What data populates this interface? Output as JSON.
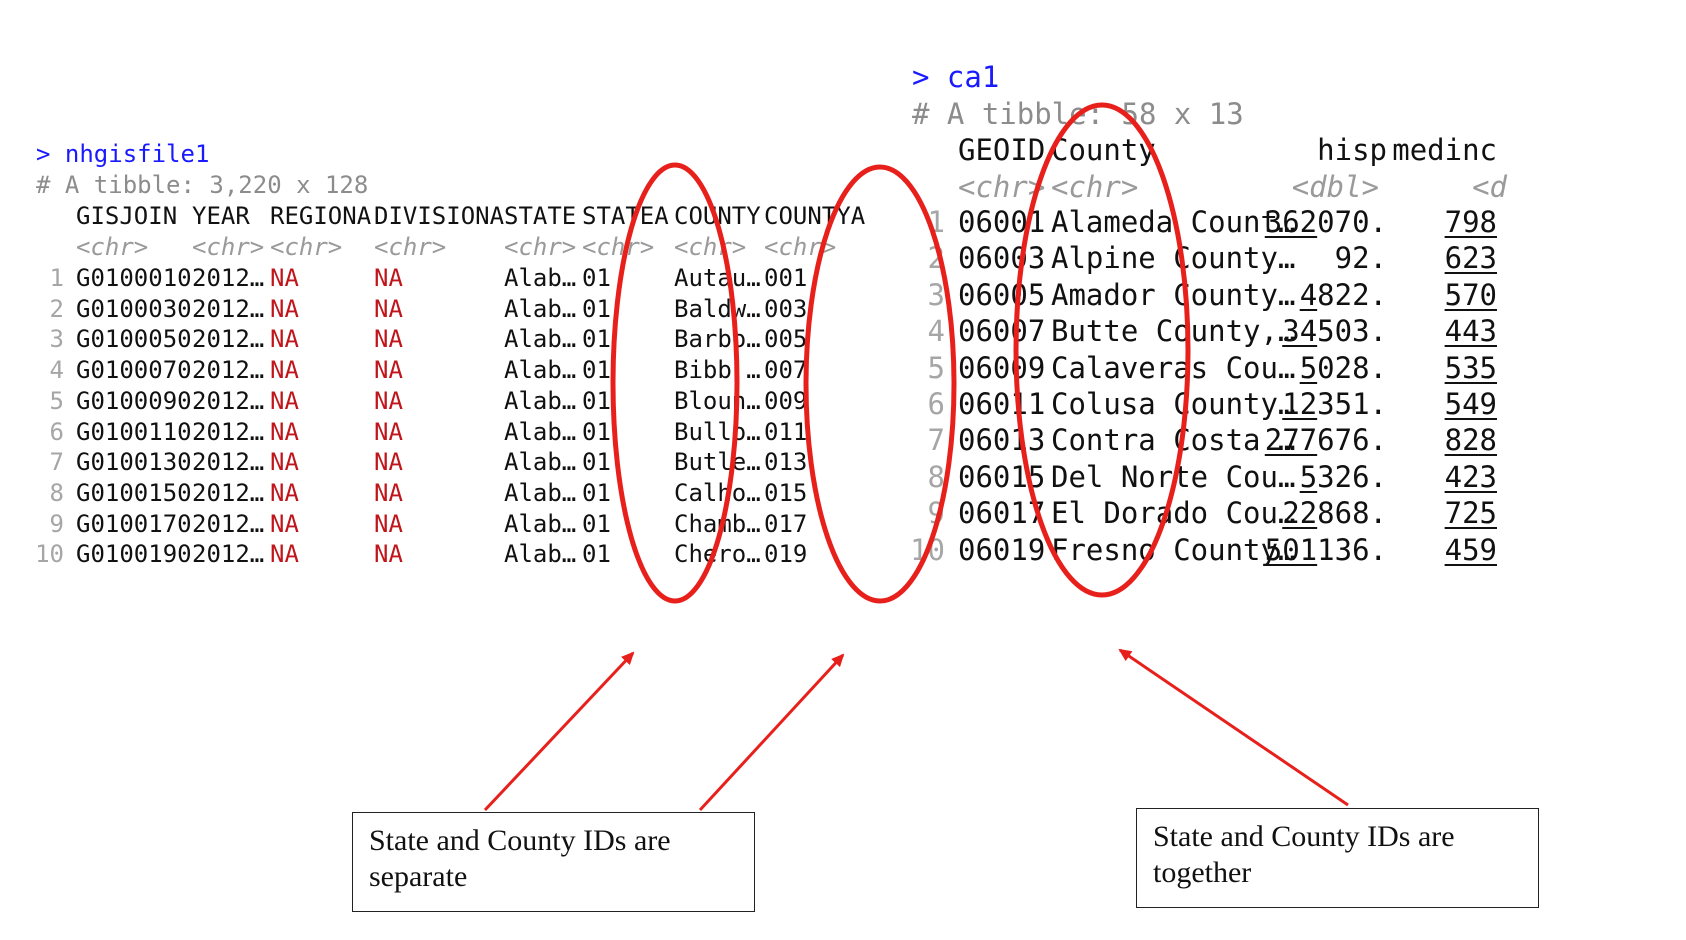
{
  "left_console": {
    "prompt": "> nhgisfile1",
    "tibble_info": "# A tibble: 3,220 x 128",
    "columns": [
      {
        "name": "GISJOIN",
        "type": "<chr>"
      },
      {
        "name": "YEAR",
        "type": "<chr>"
      },
      {
        "name": "REGIONA",
        "type": "<chr>"
      },
      {
        "name": "DIVISIONA",
        "type": "<chr>"
      },
      {
        "name": "STATE",
        "type": "<chr>"
      },
      {
        "name": "STATEA",
        "type": "<chr>"
      },
      {
        "name": "COUNTY",
        "type": "<chr>"
      },
      {
        "name": "COUNTYA",
        "type": "<chr>"
      }
    ],
    "rows": [
      [
        "1",
        "G0100010",
        "2012…",
        "NA",
        "NA",
        "Alab…",
        "01",
        "Autau…",
        "001"
      ],
      [
        "2",
        "G0100030",
        "2012…",
        "NA",
        "NA",
        "Alab…",
        "01",
        "Baldw…",
        "003"
      ],
      [
        "3",
        "G0100050",
        "2012…",
        "NA",
        "NA",
        "Alab…",
        "01",
        "Barbo…",
        "005"
      ],
      [
        "4",
        "G0100070",
        "2012…",
        "NA",
        "NA",
        "Alab…",
        "01",
        "Bibb …",
        "007"
      ],
      [
        "5",
        "G0100090",
        "2012…",
        "NA",
        "NA",
        "Alab…",
        "01",
        "Bloun…",
        "009"
      ],
      [
        "6",
        "G0100110",
        "2012…",
        "NA",
        "NA",
        "Alab…",
        "01",
        "Bullo…",
        "011"
      ],
      [
        "7",
        "G0100130",
        "2012…",
        "NA",
        "NA",
        "Alab…",
        "01",
        "Butle…",
        "013"
      ],
      [
        "8",
        "G0100150",
        "2012…",
        "NA",
        "NA",
        "Alab…",
        "01",
        "Calho…",
        "015"
      ],
      [
        "9",
        "G0100170",
        "2012…",
        "NA",
        "NA",
        "Alab…",
        "01",
        "Chamb…",
        "017"
      ],
      [
        "10",
        "G0100190",
        "2012…",
        "NA",
        "NA",
        "Alab…",
        "01",
        "Chero…",
        "019"
      ]
    ]
  },
  "right_console": {
    "prompt": "> ca1",
    "tibble_info": "# A tibble: 58 x 13",
    "columns": [
      {
        "name": "GEOID",
        "type": "<chr>"
      },
      {
        "name": "County",
        "type": "<chr>"
      },
      {
        "name": "hisp",
        "type": "<dbl>"
      },
      {
        "name": "medinc",
        "type": "<d"
      }
    ],
    "rows": [
      [
        "1",
        "06001",
        "Alameda Count…",
        "362070.",
        "798"
      ],
      [
        "2",
        "06003",
        "Alpine County…",
        "92.",
        "623"
      ],
      [
        "3",
        "06005",
        "Amador County…",
        "4822.",
        "570"
      ],
      [
        "4",
        "06007",
        "Butte County,…",
        "34503.",
        "443"
      ],
      [
        "5",
        "06009",
        "Calaveras Cou…",
        "5028.",
        "535"
      ],
      [
        "6",
        "06011",
        "Colusa County…",
        "12351.",
        "549"
      ],
      [
        "7",
        "06013",
        "Contra Costa …",
        "277676.",
        "828"
      ],
      [
        "8",
        "06015",
        "Del Norte Cou…",
        "5326.",
        "423"
      ],
      [
        "9",
        "06017",
        "El Dorado Cou…",
        "22868.",
        "725"
      ],
      [
        "10",
        "06019",
        "Fresno County…",
        "501136.",
        "459"
      ]
    ]
  },
  "callouts": {
    "separate": "State and County IDs are separate",
    "together": "State and County IDs are together"
  },
  "colors": {
    "prompt_blue": "#1a1aff",
    "na_red": "#c0161b",
    "annotation_red": "#e8201c",
    "comment_gray": "#8c8c8c"
  }
}
